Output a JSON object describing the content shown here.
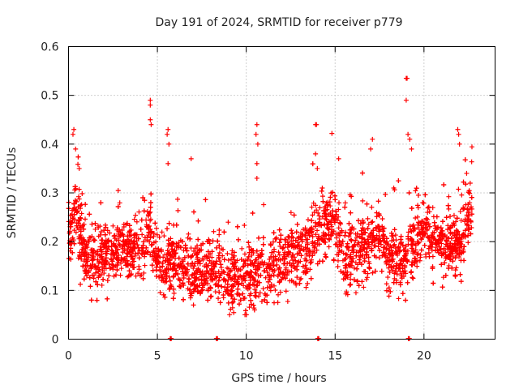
{
  "chart_data": {
    "type": "scatter",
    "title": "Day 191 of 2024, SRMTID for receiver p779",
    "xlabel": "GPS time / hours",
    "ylabel": "SRMTID / TECUs",
    "xlim": [
      0,
      24
    ],
    "ylim": [
      0,
      0.6
    ],
    "xticks": [
      0,
      5,
      10,
      15,
      20
    ],
    "yticks": [
      0,
      0.1,
      0.2,
      0.3,
      0.4,
      0.5,
      0.6
    ],
    "grid": true,
    "marker": "+",
    "color": "#ff0000",
    "series": [
      {
        "name": "p779",
        "trend": [
          [
            0.0,
            0.22
          ],
          [
            0.4,
            0.26
          ],
          [
            0.8,
            0.2
          ],
          [
            1.2,
            0.16
          ],
          [
            2.0,
            0.17
          ],
          [
            3.0,
            0.19
          ],
          [
            4.0,
            0.18
          ],
          [
            4.6,
            0.23
          ],
          [
            5.0,
            0.16
          ],
          [
            5.6,
            0.15
          ],
          [
            6.0,
            0.17
          ],
          [
            6.6,
            0.15
          ],
          [
            7.0,
            0.13
          ],
          [
            8.0,
            0.14
          ],
          [
            8.5,
            0.15
          ],
          [
            9.0,
            0.11
          ],
          [
            9.5,
            0.13
          ],
          [
            10.0,
            0.12
          ],
          [
            10.5,
            0.14
          ],
          [
            11.0,
            0.13
          ],
          [
            11.5,
            0.15
          ],
          [
            12.0,
            0.16
          ],
          [
            13.0,
            0.17
          ],
          [
            13.6,
            0.19
          ],
          [
            14.0,
            0.22
          ],
          [
            14.5,
            0.23
          ],
          [
            15.0,
            0.24
          ],
          [
            15.5,
            0.16
          ],
          [
            16.0,
            0.18
          ],
          [
            17.0,
            0.2
          ],
          [
            17.5,
            0.21
          ],
          [
            18.0,
            0.17
          ],
          [
            19.0,
            0.16
          ],
          [
            19.5,
            0.2
          ],
          [
            20.0,
            0.23
          ],
          [
            21.0,
            0.2
          ],
          [
            22.0,
            0.19
          ],
          [
            22.3,
            0.24
          ],
          [
            22.7,
            0.26
          ]
        ],
        "spread": 0.055,
        "points_per_hour": 170,
        "outliers": [
          [
            0.3,
            0.43
          ],
          [
            0.25,
            0.42
          ],
          [
            0.4,
            0.39
          ],
          [
            0.6,
            0.35
          ],
          [
            4.6,
            0.49
          ],
          [
            4.6,
            0.48
          ],
          [
            4.6,
            0.45
          ],
          [
            4.65,
            0.44
          ],
          [
            5.6,
            0.43
          ],
          [
            5.55,
            0.42
          ],
          [
            5.65,
            0.4
          ],
          [
            5.6,
            0.36
          ],
          [
            6.9,
            0.37
          ],
          [
            10.6,
            0.44
          ],
          [
            10.55,
            0.42
          ],
          [
            10.65,
            0.4
          ],
          [
            10.6,
            0.36
          ],
          [
            10.6,
            0.33
          ],
          [
            13.9,
            0.44
          ],
          [
            13.95,
            0.44
          ],
          [
            13.9,
            0.38
          ],
          [
            14.0,
            0.35
          ],
          [
            15.2,
            0.37
          ],
          [
            17.1,
            0.41
          ],
          [
            17.0,
            0.39
          ],
          [
            18.3,
            0.31
          ],
          [
            19.0,
            0.535
          ],
          [
            19.05,
            0.535
          ],
          [
            19.0,
            0.49
          ],
          [
            19.1,
            0.42
          ],
          [
            19.2,
            0.41
          ],
          [
            19.3,
            0.39
          ],
          [
            20.2,
            0.26
          ],
          [
            21.9,
            0.43
          ],
          [
            21.95,
            0.42
          ],
          [
            22.0,
            0.4
          ],
          [
            22.4,
            0.34
          ],
          [
            22.6,
            0.32
          ]
        ],
        "zero_points": [
          5.75,
          8.35,
          14.05,
          19.15
        ]
      }
    ]
  }
}
